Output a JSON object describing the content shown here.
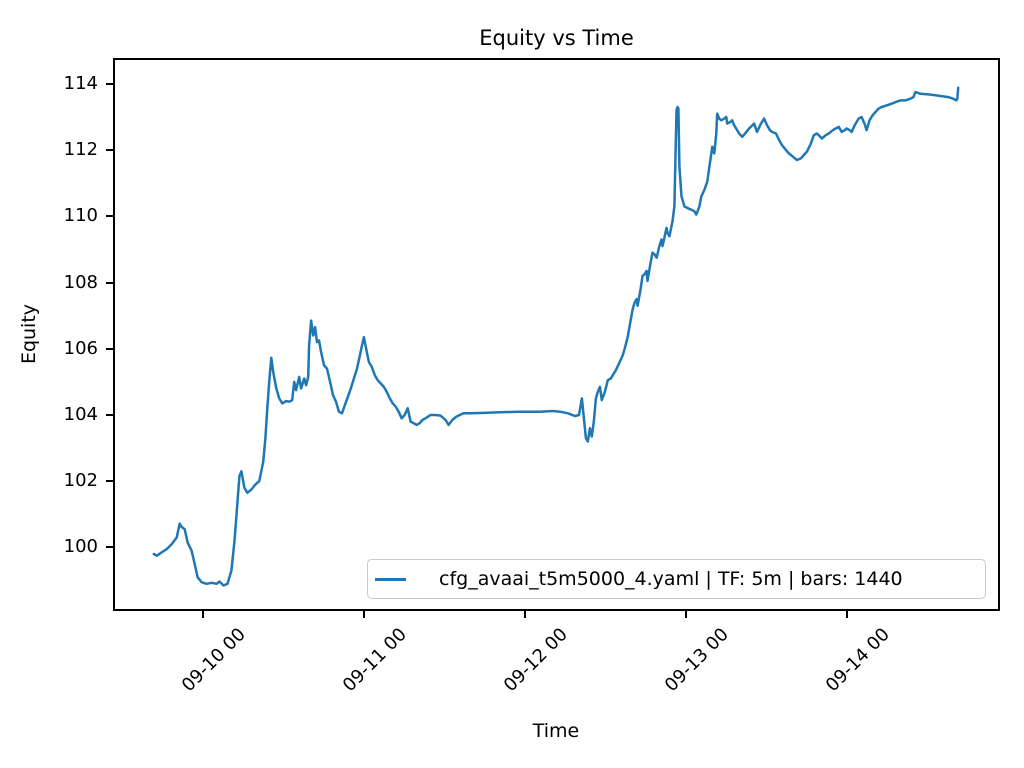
{
  "chart_data": {
    "type": "line",
    "title": "Equity vs Time",
    "xlabel": "Time",
    "ylabel": "Equity",
    "grid": false,
    "legend_position": "lower right",
    "line_color": "#1f77b4",
    "x_unit": "days since 09-10 00:00",
    "xlim": [
      -0.544,
      4.941
    ],
    "ylim": [
      98.14,
      114.72
    ],
    "y_ticks": [
      100,
      102,
      104,
      106,
      108,
      110,
      112,
      114
    ],
    "x_ticks": [
      {
        "value": 0,
        "label": "09-10 00"
      },
      {
        "value": 1,
        "label": "09-11 00"
      },
      {
        "value": 2,
        "label": "09-12 00"
      },
      {
        "value": 3,
        "label": "09-13 00"
      },
      {
        "value": 4,
        "label": "09-14 00"
      }
    ],
    "series": [
      {
        "name": "cfg_avaai_t5m5000_4.yaml | TF: 5m | bars: 1440",
        "color": "#1f77b4",
        "points": [
          [
            -0.303,
            99.8
          ],
          [
            -0.284,
            99.75
          ],
          [
            -0.254,
            99.85
          ],
          [
            -0.223,
            99.95
          ],
          [
            -0.192,
            100.1
          ],
          [
            -0.161,
            100.3
          ],
          [
            -0.142,
            100.72
          ],
          [
            -0.13,
            100.62
          ],
          [
            -0.111,
            100.55
          ],
          [
            -0.093,
            100.15
          ],
          [
            -0.068,
            99.9
          ],
          [
            -0.049,
            99.5
          ],
          [
            -0.031,
            99.1
          ],
          [
            -0.006,
            98.95
          ],
          [
            0.025,
            98.9
          ],
          [
            0.056,
            98.93
          ],
          [
            0.087,
            98.9
          ],
          [
            0.105,
            98.97
          ],
          [
            0.13,
            98.85
          ],
          [
            0.155,
            98.9
          ],
          [
            0.179,
            99.3
          ],
          [
            0.198,
            100.2
          ],
          [
            0.216,
            101.3
          ],
          [
            0.229,
            102.15
          ],
          [
            0.241,
            102.3
          ],
          [
            0.26,
            101.8
          ],
          [
            0.278,
            101.65
          ],
          [
            0.303,
            101.75
          ],
          [
            0.328,
            101.9
          ],
          [
            0.352,
            102.0
          ],
          [
            0.365,
            102.3
          ],
          [
            0.377,
            102.6
          ],
          [
            0.39,
            103.3
          ],
          [
            0.402,
            104.2
          ],
          [
            0.414,
            105.0
          ],
          [
            0.427,
            105.73
          ],
          [
            0.439,
            105.3
          ],
          [
            0.458,
            104.8
          ],
          [
            0.476,
            104.5
          ],
          [
            0.495,
            104.35
          ],
          [
            0.519,
            104.42
          ],
          [
            0.538,
            104.4
          ],
          [
            0.557,
            104.45
          ],
          [
            0.569,
            105.0
          ],
          [
            0.581,
            104.75
          ],
          [
            0.6,
            105.15
          ],
          [
            0.612,
            104.8
          ],
          [
            0.631,
            105.1
          ],
          [
            0.643,
            104.9
          ],
          [
            0.656,
            105.15
          ],
          [
            0.662,
            106.1
          ],
          [
            0.674,
            106.85
          ],
          [
            0.687,
            106.4
          ],
          [
            0.699,
            106.65
          ],
          [
            0.711,
            106.2
          ],
          [
            0.723,
            106.25
          ],
          [
            0.736,
            105.9
          ],
          [
            0.754,
            105.5
          ],
          [
            0.773,
            105.4
          ],
          [
            0.792,
            105.0
          ],
          [
            0.81,
            104.6
          ],
          [
            0.829,
            104.4
          ],
          [
            0.847,
            104.1
          ],
          [
            0.866,
            104.05
          ],
          [
            0.884,
            104.3
          ],
          [
            0.903,
            104.55
          ],
          [
            0.921,
            104.8
          ],
          [
            0.94,
            105.1
          ],
          [
            0.959,
            105.4
          ],
          [
            0.977,
            105.8
          ],
          [
            0.99,
            106.1
          ],
          [
            1.002,
            106.35
          ],
          [
            1.02,
            105.9
          ],
          [
            1.033,
            105.6
          ],
          [
            1.051,
            105.45
          ],
          [
            1.07,
            105.2
          ],
          [
            1.088,
            105.05
          ],
          [
            1.107,
            104.95
          ],
          [
            1.126,
            104.85
          ],
          [
            1.144,
            104.7
          ],
          [
            1.163,
            104.5
          ],
          [
            1.181,
            104.35
          ],
          [
            1.2,
            104.25
          ],
          [
            1.218,
            104.1
          ],
          [
            1.237,
            103.9
          ],
          [
            1.255,
            104.0
          ],
          [
            1.274,
            104.2
          ],
          [
            1.292,
            103.8
          ],
          [
            1.311,
            103.75
          ],
          [
            1.33,
            103.7
          ],
          [
            1.348,
            103.75
          ],
          [
            1.367,
            103.85
          ],
          [
            1.385,
            103.9
          ],
          [
            1.416,
            104.0
          ],
          [
            1.447,
            104.0
          ],
          [
            1.478,
            103.98
          ],
          [
            1.509,
            103.85
          ],
          [
            1.528,
            103.7
          ],
          [
            1.552,
            103.85
          ],
          [
            1.577,
            103.95
          ],
          [
            1.62,
            104.05
          ],
          [
            1.664,
            104.05
          ],
          [
            1.725,
            104.06
          ],
          [
            1.787,
            104.07
          ],
          [
            1.849,
            104.08
          ],
          [
            1.911,
            104.09
          ],
          [
            1.973,
            104.1
          ],
          [
            2.035,
            104.1
          ],
          [
            2.096,
            104.1
          ],
          [
            2.177,
            104.12
          ],
          [
            2.22,
            104.1
          ],
          [
            2.27,
            104.05
          ],
          [
            2.313,
            103.97
          ],
          [
            2.338,
            104.0
          ],
          [
            2.356,
            104.5
          ],
          [
            2.369,
            103.9
          ],
          [
            2.381,
            103.3
          ],
          [
            2.393,
            103.2
          ],
          [
            2.406,
            103.6
          ],
          [
            2.418,
            103.35
          ],
          [
            2.43,
            103.8
          ],
          [
            2.443,
            104.5
          ],
          [
            2.455,
            104.7
          ],
          [
            2.468,
            104.85
          ],
          [
            2.48,
            104.45
          ],
          [
            2.499,
            104.7
          ],
          [
            2.517,
            105.05
          ],
          [
            2.536,
            105.1
          ],
          [
            2.548,
            105.2
          ],
          [
            2.567,
            105.35
          ],
          [
            2.591,
            105.6
          ],
          [
            2.61,
            105.8
          ],
          [
            2.622,
            106.0
          ],
          [
            2.641,
            106.35
          ],
          [
            2.653,
            106.7
          ],
          [
            2.672,
            107.2
          ],
          [
            2.684,
            107.4
          ],
          [
            2.696,
            107.5
          ],
          [
            2.702,
            107.3
          ],
          [
            2.721,
            107.8
          ],
          [
            2.733,
            108.2
          ],
          [
            2.746,
            108.25
          ],
          [
            2.758,
            108.35
          ],
          [
            2.764,
            108.05
          ],
          [
            2.783,
            108.6
          ],
          [
            2.795,
            108.9
          ],
          [
            2.808,
            108.85
          ],
          [
            2.82,
            108.75
          ],
          [
            2.838,
            109.1
          ],
          [
            2.851,
            109.3
          ],
          [
            2.857,
            109.1
          ],
          [
            2.869,
            109.35
          ],
          [
            2.882,
            109.65
          ],
          [
            2.888,
            109.5
          ],
          [
            2.9,
            109.4
          ],
          [
            2.913,
            109.7
          ],
          [
            2.919,
            109.85
          ],
          [
            2.931,
            110.3
          ],
          [
            2.944,
            113.2
          ],
          [
            2.95,
            113.3
          ],
          [
            2.956,
            113.25
          ],
          [
            2.962,
            111.5
          ],
          [
            2.975,
            110.6
          ],
          [
            2.981,
            110.5
          ],
          [
            2.993,
            110.3
          ],
          [
            3.012,
            110.25
          ],
          [
            3.024,
            110.22
          ],
          [
            3.036,
            110.2
          ],
          [
            3.055,
            110.15
          ],
          [
            3.067,
            110.05
          ],
          [
            3.086,
            110.3
          ],
          [
            3.098,
            110.6
          ],
          [
            3.117,
            110.8
          ],
          [
            3.135,
            111.05
          ],
          [
            3.148,
            111.5
          ],
          [
            3.166,
            112.1
          ],
          [
            3.179,
            111.9
          ],
          [
            3.191,
            112.5
          ],
          [
            3.197,
            113.1
          ],
          [
            3.209,
            112.95
          ],
          [
            3.222,
            112.9
          ],
          [
            3.24,
            112.95
          ],
          [
            3.253,
            113.0
          ],
          [
            3.259,
            112.8
          ],
          [
            3.278,
            112.85
          ],
          [
            3.29,
            112.9
          ],
          [
            3.302,
            112.75
          ],
          [
            3.321,
            112.6
          ],
          [
            3.333,
            112.5
          ],
          [
            3.352,
            112.4
          ],
          [
            3.37,
            112.5
          ],
          [
            3.395,
            112.65
          ],
          [
            3.426,
            112.8
          ],
          [
            3.444,
            112.55
          ],
          [
            3.469,
            112.8
          ],
          [
            3.488,
            112.95
          ],
          [
            3.506,
            112.75
          ],
          [
            3.525,
            112.6
          ],
          [
            3.537,
            112.55
          ],
          [
            3.562,
            112.5
          ],
          [
            3.581,
            112.3
          ],
          [
            3.599,
            112.15
          ],
          [
            3.624,
            112.0
          ],
          [
            3.642,
            111.9
          ],
          [
            3.667,
            111.8
          ],
          [
            3.692,
            111.7
          ],
          [
            3.717,
            111.75
          ],
          [
            3.735,
            111.85
          ],
          [
            3.754,
            111.95
          ],
          [
            3.779,
            112.2
          ],
          [
            3.797,
            112.45
          ],
          [
            3.816,
            112.5
          ],
          [
            3.828,
            112.45
          ],
          [
            3.847,
            112.35
          ],
          [
            3.871,
            112.45
          ],
          [
            3.89,
            112.5
          ],
          [
            3.915,
            112.6
          ],
          [
            3.933,
            112.65
          ],
          [
            3.952,
            112.7
          ],
          [
            3.97,
            112.55
          ],
          [
            3.989,
            112.6
          ],
          [
            4.001,
            112.65
          ],
          [
            4.02,
            112.6
          ],
          [
            4.032,
            112.55
          ],
          [
            4.051,
            112.75
          ],
          [
            4.075,
            112.95
          ],
          [
            4.094,
            113.0
          ],
          [
            4.112,
            112.8
          ],
          [
            4.125,
            112.6
          ],
          [
            4.143,
            112.9
          ],
          [
            4.162,
            113.05
          ],
          [
            4.18,
            113.15
          ],
          [
            4.199,
            113.25
          ],
          [
            4.218,
            113.3
          ],
          [
            4.249,
            113.35
          ],
          [
            4.28,
            113.4
          ],
          [
            4.304,
            113.45
          ],
          [
            4.335,
            113.5
          ],
          [
            4.366,
            113.5
          ],
          [
            4.397,
            113.55
          ],
          [
            4.416,
            113.6
          ],
          [
            4.428,
            113.75
          ],
          [
            4.459,
            113.7
          ],
          [
            4.509,
            113.68
          ],
          [
            4.558,
            113.65
          ],
          [
            4.601,
            113.62
          ],
          [
            4.632,
            113.6
          ],
          [
            4.663,
            113.55
          ],
          [
            4.682,
            113.5
          ],
          [
            4.688,
            113.55
          ],
          [
            4.694,
            113.88
          ]
        ]
      }
    ]
  }
}
